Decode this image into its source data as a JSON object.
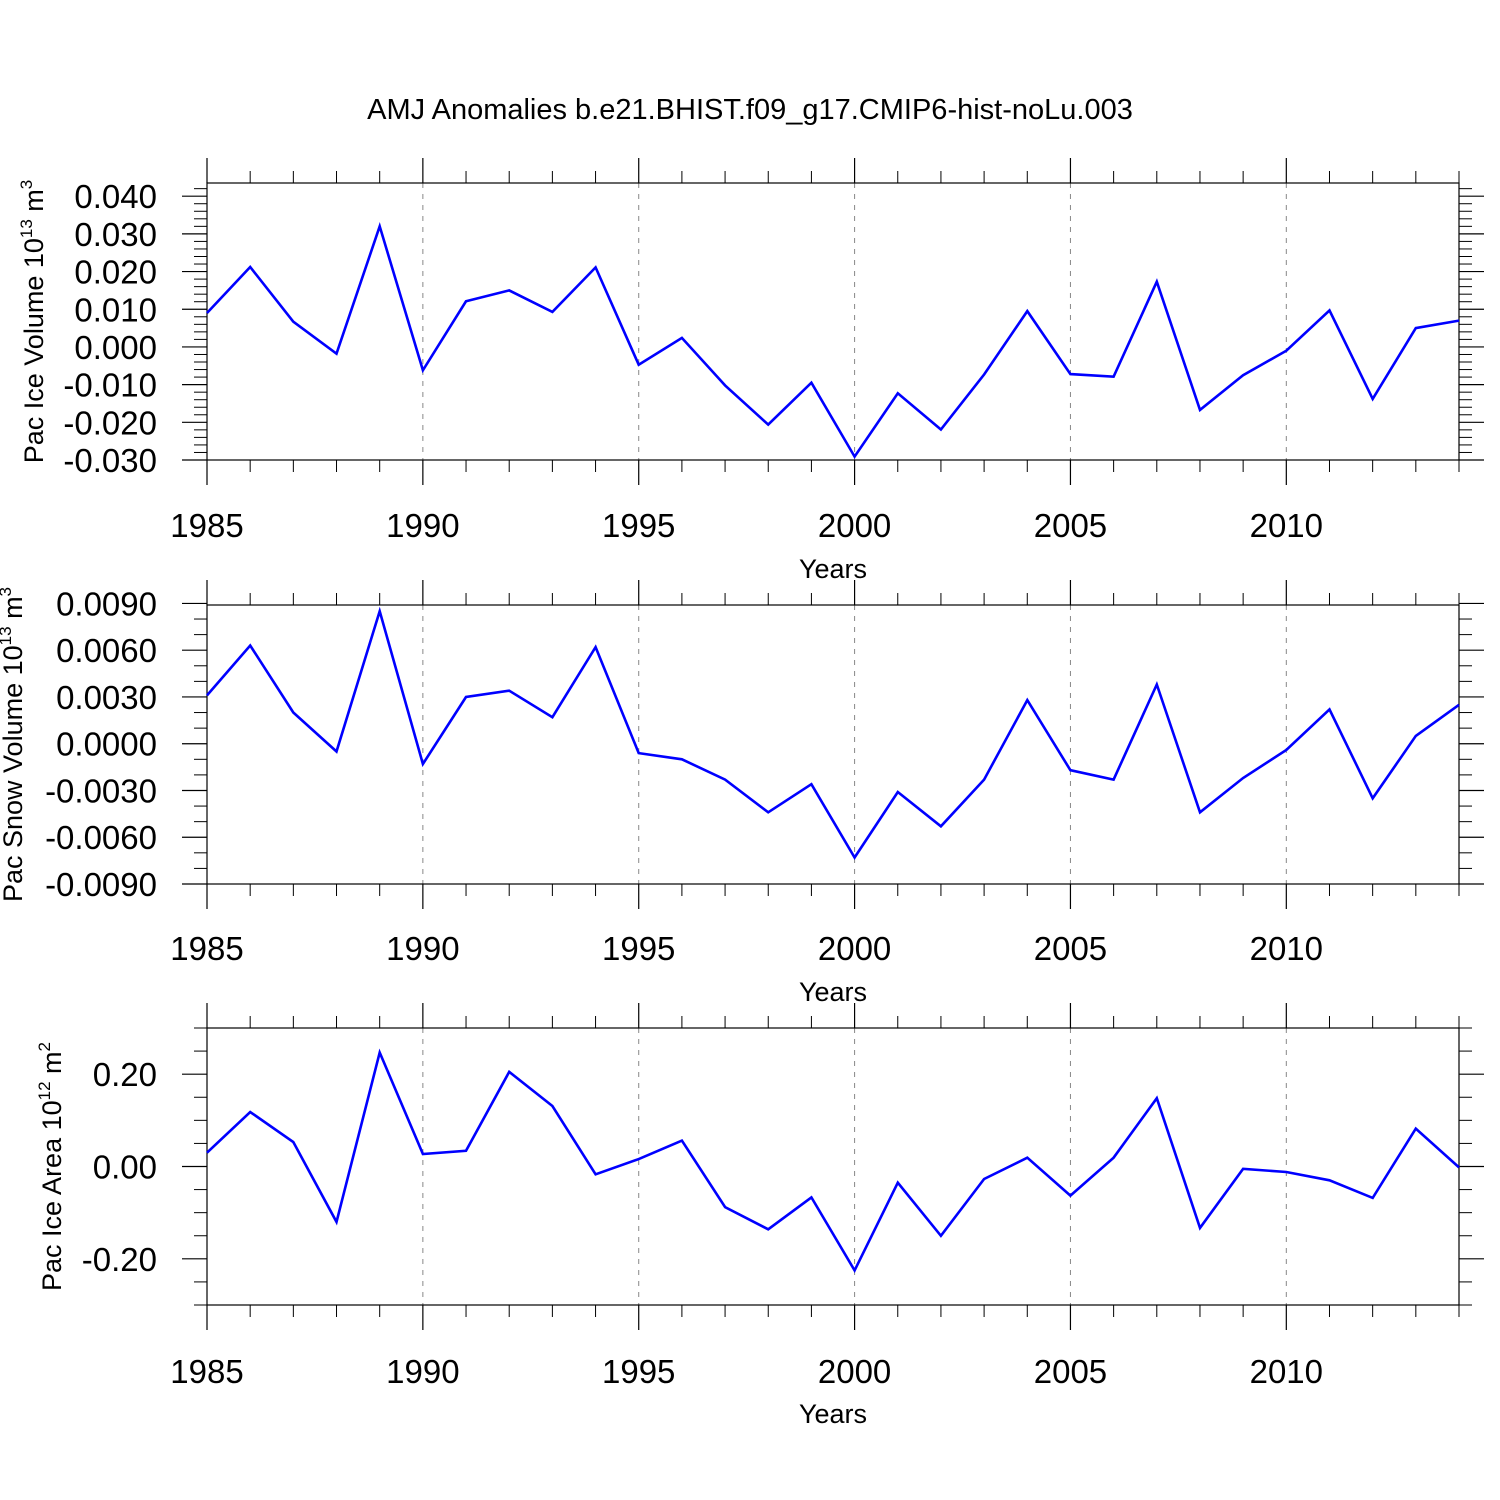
{
  "title": "AMJ Anomalies b.e21.BHIST.f09_g17.CMIP6-hist-noLu.003",
  "colors": {
    "line": "#0000ff",
    "axis": "#000000",
    "grid": "#888888"
  },
  "chart_data": [
    {
      "type": "line",
      "ylabel": "Pac Ice Volume 10",
      "ylabel_sup": "13",
      "ylabel_unit": " m",
      "ylabel_unit_sup": "3",
      "xlabel": "Years",
      "xlim": [
        1985,
        2014
      ],
      "ylim": [
        -0.03,
        0.0435
      ],
      "yticks": [
        -0.03,
        -0.02,
        -0.01,
        0.0,
        0.01,
        0.02,
        0.03,
        0.04
      ],
      "ytick_labels": [
        "-0.030",
        "-0.020",
        "-0.010",
        "0.000",
        "0.010",
        "0.020",
        "0.030",
        "0.040"
      ],
      "yminor_step": 0.002,
      "xticks": [
        1985,
        1990,
        1995,
        2000,
        2005,
        2010
      ],
      "xtick_labels": [
        "1985",
        "1990",
        "1995",
        "2000",
        "2005",
        "2010"
      ],
      "grid": "dashed vertical at major x ticks",
      "series": [
        {
          "name": "Pac Ice Volume",
          "x": [
            1985,
            1986,
            1987,
            1988,
            1989,
            1990,
            1991,
            1992,
            1993,
            1994,
            1995,
            1996,
            1997,
            1998,
            1999,
            2000,
            2001,
            2002,
            2003,
            2004,
            2005,
            2006,
            2007,
            2008,
            2009,
            2010,
            2011,
            2012,
            2013,
            2014
          ],
          "values": [
            0.009,
            0.0212,
            0.0067,
            -0.0018,
            0.032,
            -0.0062,
            0.0121,
            0.015,
            0.0093,
            0.0211,
            -0.0047,
            0.0024,
            -0.0102,
            -0.0206,
            -0.0095,
            -0.0291,
            -0.0123,
            -0.0219,
            -0.0073,
            0.0095,
            -0.0072,
            -0.0079,
            0.0173,
            -0.0167,
            -0.0075,
            -0.001,
            0.0097,
            -0.0138,
            0.005,
            0.007
          ]
        }
      ]
    },
    {
      "type": "line",
      "ylabel": "Pac Snow Volume 10",
      "ylabel_sup": "13",
      "ylabel_unit": " m",
      "ylabel_unit_sup": "3",
      "xlabel": "Years",
      "xlim": [
        1985,
        2014
      ],
      "ylim": [
        -0.009,
        0.0089
      ],
      "yticks": [
        -0.009,
        -0.006,
        -0.003,
        0.0,
        0.003,
        0.006,
        0.009
      ],
      "ytick_labels": [
        "-0.0090",
        "-0.0060",
        "-0.0030",
        "0.0000",
        "0.0030",
        "0.0060",
        "0.0090"
      ],
      "yminor_step": 0.001,
      "xticks": [
        1985,
        1990,
        1995,
        2000,
        2005,
        2010
      ],
      "xtick_labels": [
        "1985",
        "1990",
        "1995",
        "2000",
        "2005",
        "2010"
      ],
      "grid": "dashed vertical at major x ticks",
      "series": [
        {
          "name": "Pac Snow Volume",
          "x": [
            1985,
            1986,
            1987,
            1988,
            1989,
            1990,
            1991,
            1992,
            1993,
            1994,
            1995,
            1996,
            1997,
            1998,
            1999,
            2000,
            2001,
            2002,
            2003,
            2004,
            2005,
            2006,
            2007,
            2008,
            2009,
            2010,
            2011,
            2012,
            2013,
            2014
          ],
          "values": [
            0.0031,
            0.0063,
            0.002,
            -0.0005,
            0.0085,
            -0.0013,
            0.003,
            0.0034,
            0.0017,
            0.0062,
            -0.0006,
            -0.001,
            -0.0023,
            -0.0044,
            -0.0026,
            -0.0073,
            -0.0031,
            -0.0053,
            -0.0023,
            0.0028,
            -0.0017,
            -0.0023,
            0.0038,
            -0.0044,
            -0.0022,
            -0.0004,
            0.0022,
            -0.0035,
            0.0005,
            0.0025
          ]
        }
      ]
    },
    {
      "type": "line",
      "ylabel": "Pac Ice Area 10",
      "ylabel_sup": "12",
      "ylabel_unit": " m",
      "ylabel_unit_sup": "2",
      "xlabel": "Years",
      "xlim": [
        1985,
        2014
      ],
      "ylim": [
        -0.3,
        0.3
      ],
      "yticks": [
        -0.2,
        0.0,
        0.2
      ],
      "ytick_labels": [
        "-0.20",
        "0.00",
        "0.20"
      ],
      "yminor_step": 0.05,
      "xticks": [
        1985,
        1990,
        1995,
        2000,
        2005,
        2010
      ],
      "xtick_labels": [
        "1985",
        "1990",
        "1995",
        "2000",
        "2005",
        "2010"
      ],
      "grid": "dashed vertical at major x ticks",
      "series": [
        {
          "name": "Pac Ice Area",
          "x": [
            1985,
            1986,
            1987,
            1988,
            1989,
            1990,
            1991,
            1992,
            1993,
            1994,
            1995,
            1996,
            1997,
            1998,
            1999,
            2000,
            2001,
            2002,
            2003,
            2004,
            2005,
            2006,
            2007,
            2008,
            2009,
            2010,
            2011,
            2012,
            2013,
            2014
          ],
          "values": [
            0.03,
            0.118,
            0.053,
            -0.12,
            0.247,
            0.027,
            0.034,
            0.205,
            0.131,
            -0.017,
            0.016,
            0.056,
            -0.088,
            -0.136,
            -0.067,
            -0.225,
            -0.035,
            -0.15,
            -0.027,
            0.019,
            -0.063,
            0.019,
            0.148,
            -0.133,
            -0.005,
            -0.012,
            -0.03,
            -0.068,
            0.082,
            -0.002
          ]
        }
      ]
    }
  ]
}
